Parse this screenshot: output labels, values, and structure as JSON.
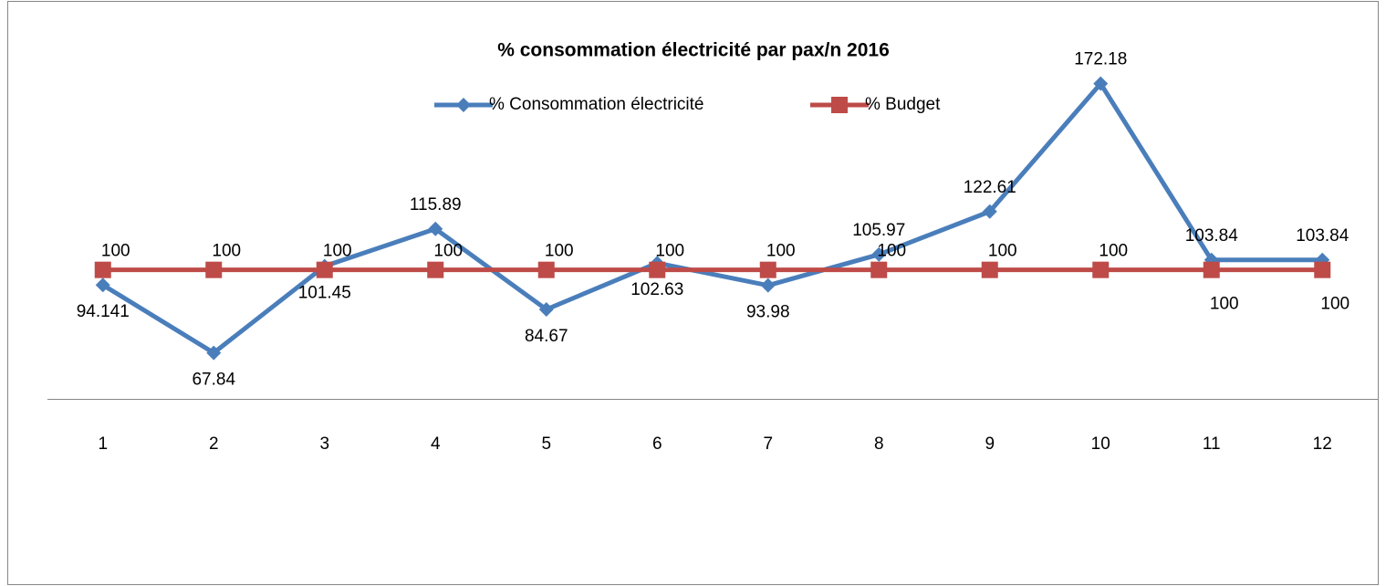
{
  "chart_data": {
    "type": "line",
    "title": "% consommation électricité par pax/n 2016",
    "categories": [
      "1",
      "2",
      "3",
      "4",
      "5",
      "6",
      "7",
      "8",
      "9",
      "10",
      "11",
      "12"
    ],
    "series": [
      {
        "name": "% Consommation électricité",
        "color": "#4a7ebb",
        "marker": "diamond",
        "values": [
          94.141,
          67.84,
          101.45,
          115.89,
          84.67,
          102.63,
          93.98,
          105.97,
          122.61,
          172.18,
          103.84,
          103.84
        ]
      },
      {
        "name": "% Budget",
        "color": "#be4b48",
        "marker": "square",
        "values": [
          100,
          100,
          100,
          100,
          100,
          100,
          100,
          100,
          100,
          100,
          100,
          100
        ]
      }
    ],
    "ylim": [
      50,
      200
    ],
    "legend": "top"
  }
}
